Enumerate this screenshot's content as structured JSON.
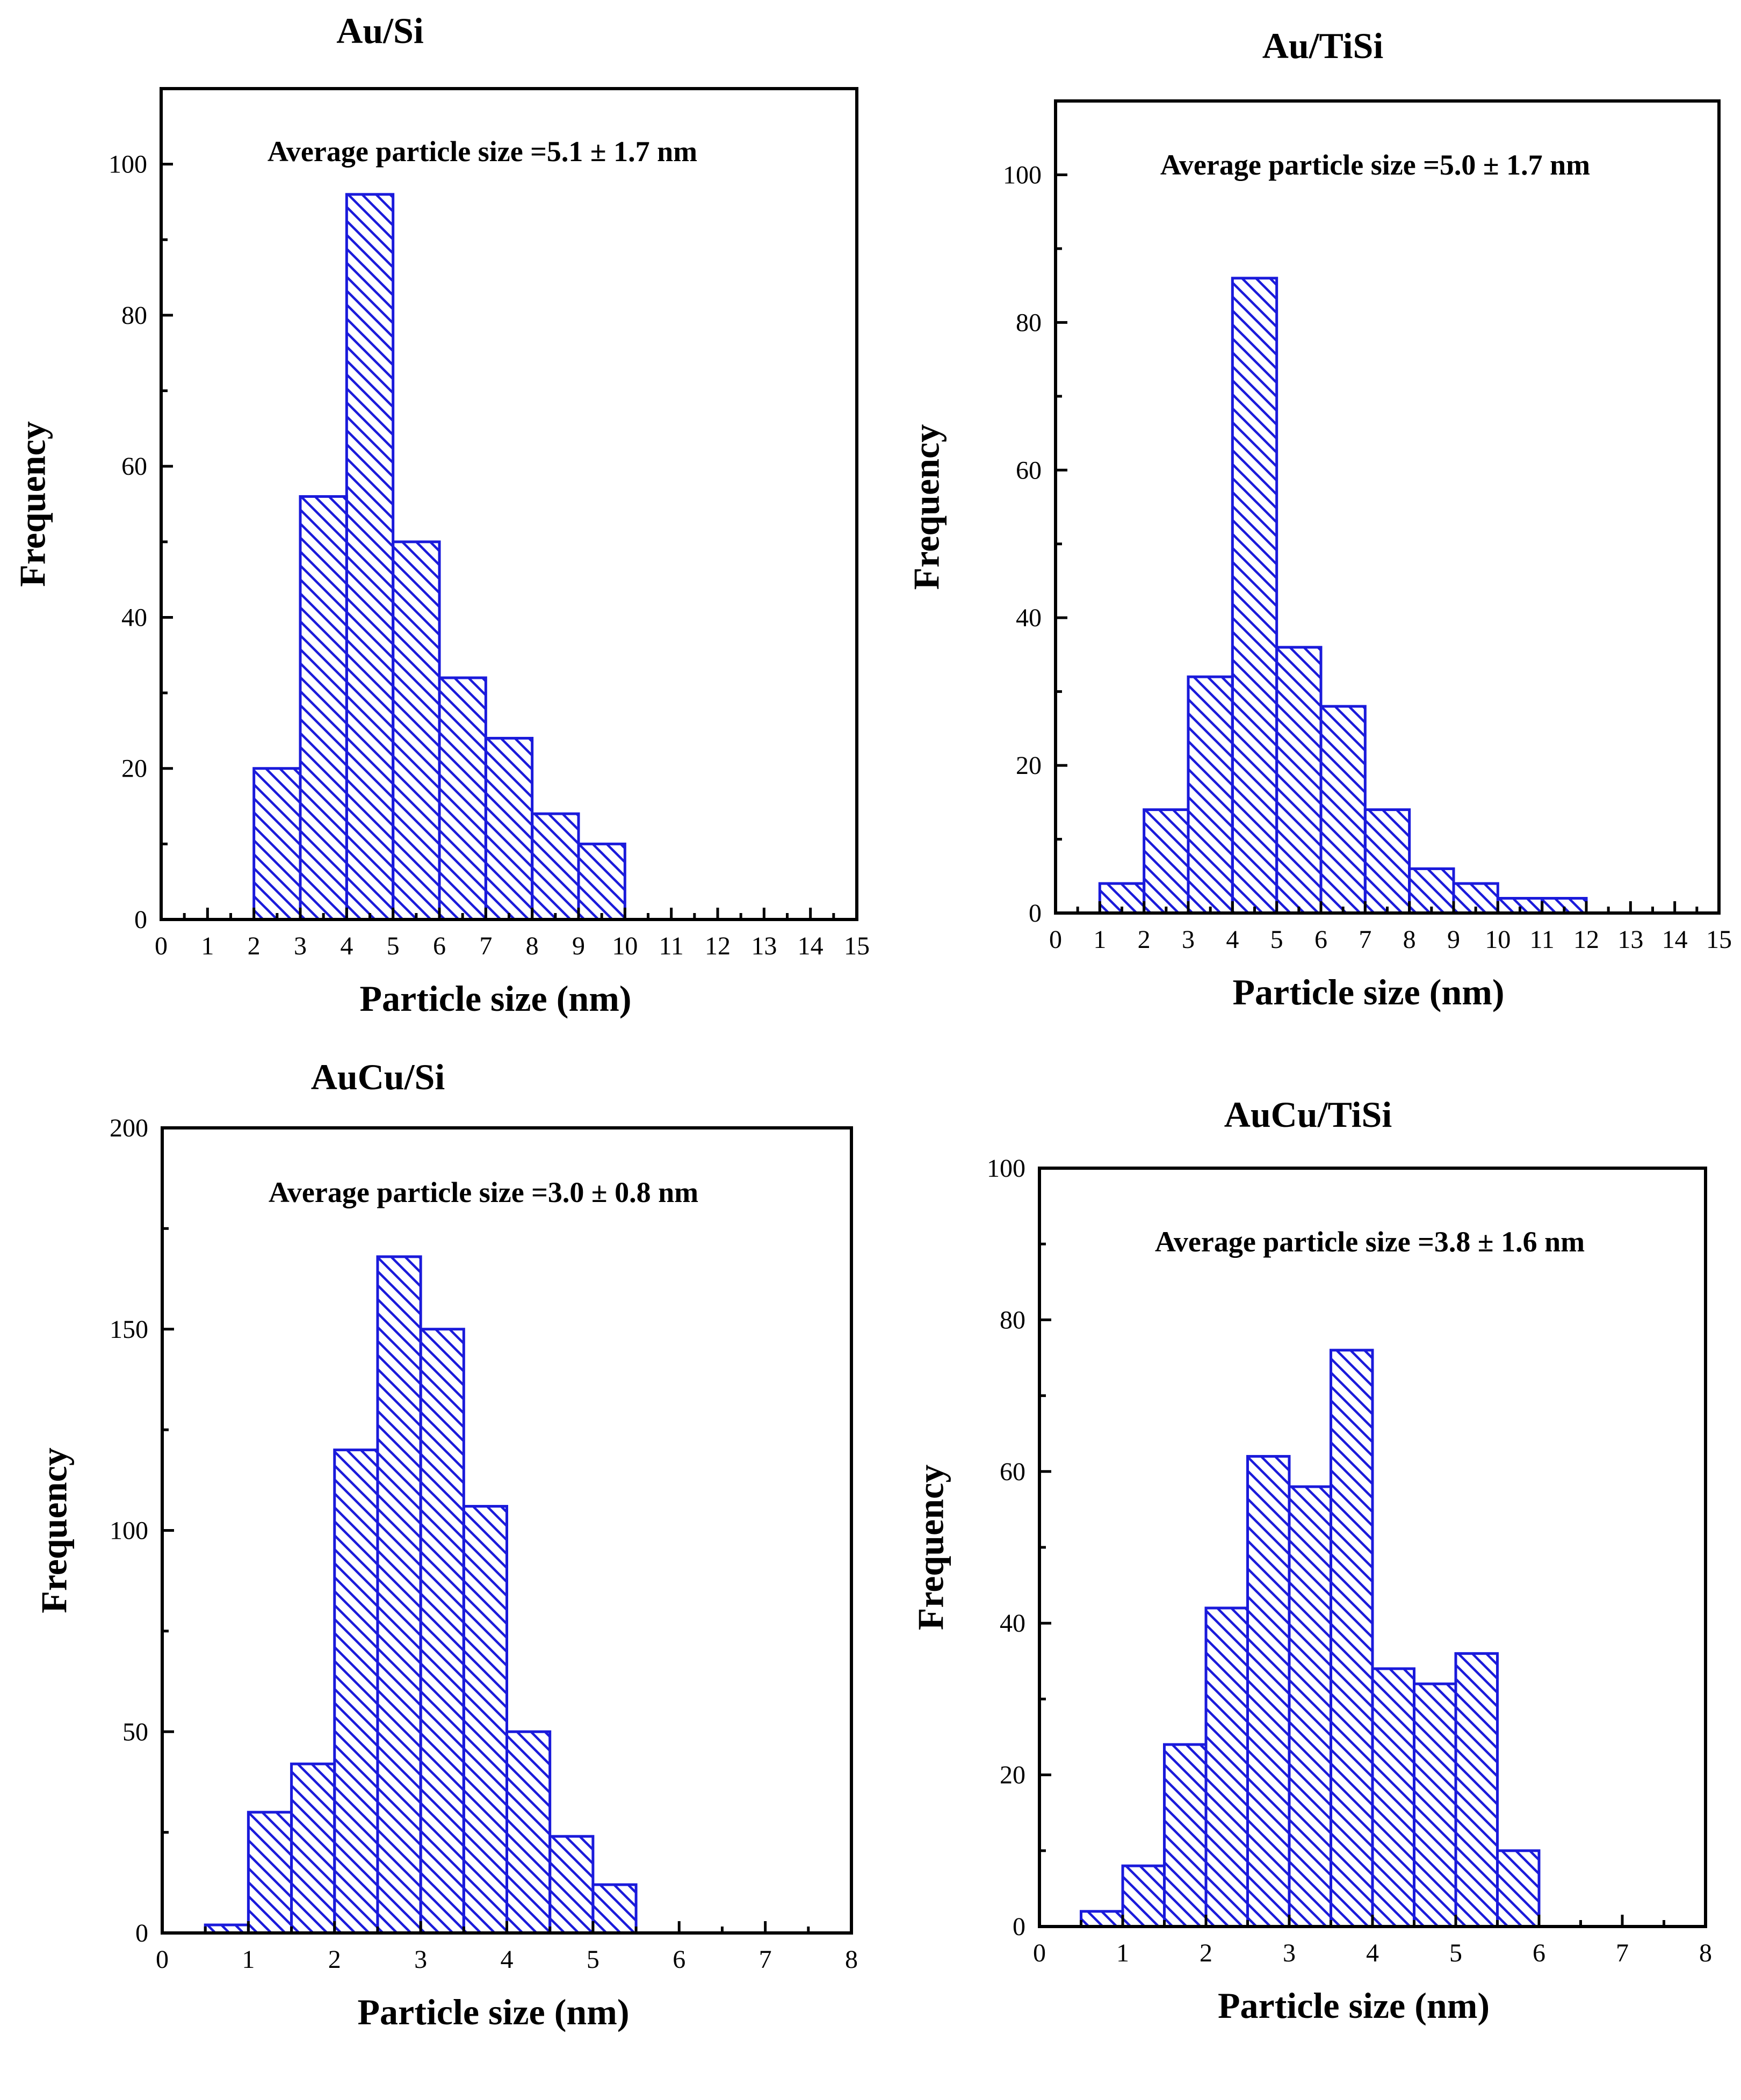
{
  "colors": {
    "bar": "#1a1adb",
    "axis": "#000000",
    "background": "#ffffff"
  },
  "chart_data": [
    {
      "type": "bar",
      "title": "Au/Si",
      "annotation": "Average particle size =5.1 ± 1.7 nm",
      "xlabel": "Particle size (nm)",
      "ylabel": "Frequency",
      "xlim": [
        0,
        15
      ],
      "ylim": [
        0,
        110
      ],
      "xticks": [
        0,
        1,
        2,
        3,
        4,
        5,
        6,
        7,
        8,
        9,
        10,
        11,
        12,
        13,
        14,
        15
      ],
      "yticks": [
        0,
        20,
        40,
        60,
        80,
        100
      ],
      "bin_width": 1,
      "bins": [
        {
          "start": 2,
          "value": 20
        },
        {
          "start": 3,
          "value": 56
        },
        {
          "start": 4,
          "value": 96
        },
        {
          "start": 5,
          "value": 50
        },
        {
          "start": 6,
          "value": 32
        },
        {
          "start": 7,
          "value": 24
        },
        {
          "start": 8,
          "value": 14
        },
        {
          "start": 9,
          "value": 10
        }
      ]
    },
    {
      "type": "bar",
      "title": "Au/TiSi",
      "annotation": "Average particle size =5.0 ± 1.7 nm",
      "xlabel": "Particle size (nm)",
      "ylabel": "Frequency",
      "xlim": [
        0,
        15
      ],
      "ylim": [
        0,
        110
      ],
      "xticks": [
        0,
        1,
        2,
        3,
        4,
        5,
        6,
        7,
        8,
        9,
        10,
        11,
        12,
        13,
        14,
        15
      ],
      "yticks": [
        0,
        20,
        40,
        60,
        80,
        100
      ],
      "bin_width": 1,
      "bins": [
        {
          "start": 1,
          "value": 4
        },
        {
          "start": 2,
          "value": 14
        },
        {
          "start": 3,
          "value": 32
        },
        {
          "start": 4,
          "value": 86
        },
        {
          "start": 5,
          "value": 36
        },
        {
          "start": 6,
          "value": 28
        },
        {
          "start": 7,
          "value": 14
        },
        {
          "start": 8,
          "value": 6
        },
        {
          "start": 9,
          "value": 4
        },
        {
          "start": 10,
          "value": 2
        },
        {
          "start": 11,
          "value": 2
        }
      ]
    },
    {
      "type": "bar",
      "title": "AuCu/Si",
      "annotation": "Average particle size =3.0 ± 0.8 nm",
      "xlabel": "Particle size (nm)",
      "ylabel": "Frequency",
      "xlim": [
        0,
        8
      ],
      "ylim": [
        0,
        200
      ],
      "xticks": [
        0,
        1,
        2,
        3,
        4,
        5,
        6,
        7,
        8
      ],
      "yticks": [
        0,
        50,
        100,
        150,
        200
      ],
      "bin_width": 0.5,
      "bins": [
        {
          "start": 0.5,
          "value": 2
        },
        {
          "start": 1.0,
          "value": 30
        },
        {
          "start": 1.5,
          "value": 42
        },
        {
          "start": 2.0,
          "value": 120
        },
        {
          "start": 2.5,
          "value": 168
        },
        {
          "start": 3.0,
          "value": 150
        },
        {
          "start": 3.5,
          "value": 106
        },
        {
          "start": 4.0,
          "value": 50
        },
        {
          "start": 4.5,
          "value": 24
        },
        {
          "start": 5.0,
          "value": 12
        }
      ]
    },
    {
      "type": "bar",
      "title": "AuCu/TiSi",
      "annotation": "Average particle size =3.8 ± 1.6 nm",
      "xlabel": "Particle size (nm)",
      "ylabel": "Frequency",
      "xlim": [
        0,
        8
      ],
      "ylim": [
        0,
        100
      ],
      "xticks": [
        0,
        1,
        2,
        3,
        4,
        5,
        6,
        7,
        8
      ],
      "yticks": [
        0,
        20,
        40,
        60,
        80,
        100
      ],
      "bin_width": 0.5,
      "bins": [
        {
          "start": 0.5,
          "value": 2
        },
        {
          "start": 1.0,
          "value": 8
        },
        {
          "start": 1.5,
          "value": 24
        },
        {
          "start": 2.0,
          "value": 42
        },
        {
          "start": 2.5,
          "value": 62
        },
        {
          "start": 3.0,
          "value": 58
        },
        {
          "start": 3.5,
          "value": 76
        },
        {
          "start": 4.0,
          "value": 34
        },
        {
          "start": 4.5,
          "value": 32
        },
        {
          "start": 5.0,
          "value": 36
        },
        {
          "start": 5.5,
          "value": 10
        }
      ]
    }
  ]
}
